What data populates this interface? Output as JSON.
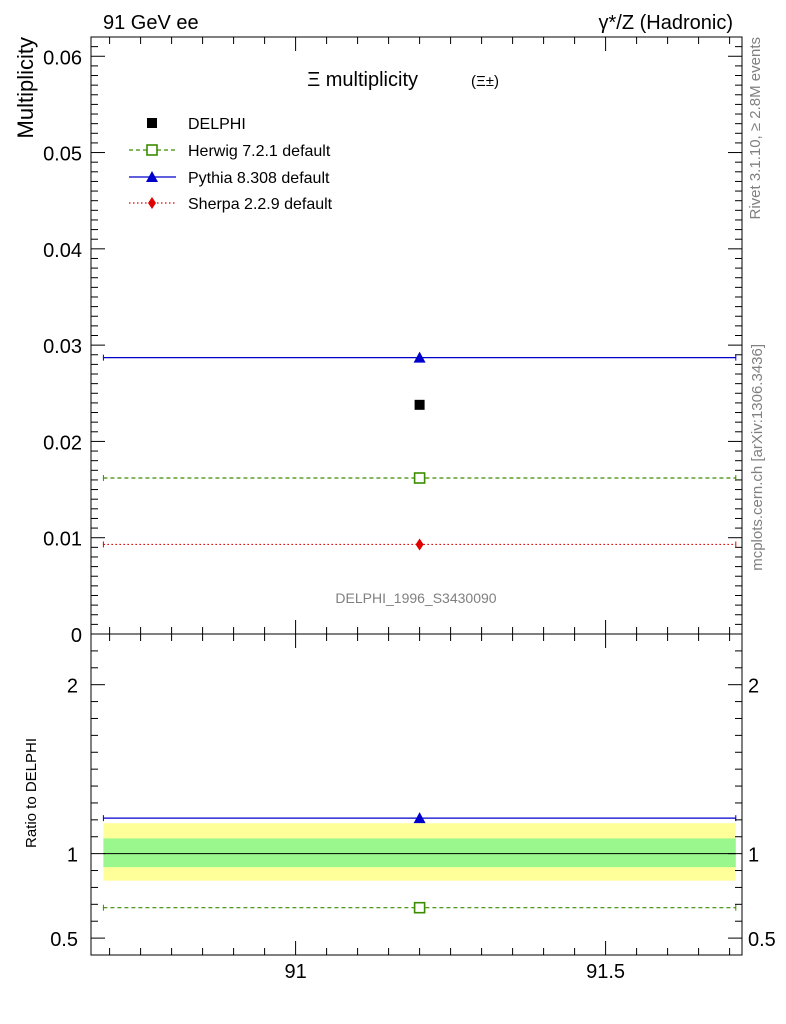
{
  "header": {
    "left": "91 GeV ee",
    "right": "γ*/Z (Hadronic)"
  },
  "side_labels": {
    "rivet": "Rivet 3.1.10, ≥ 2.8M events",
    "mcplots": "mcplots.cern.ch [arXiv:1306.3436]"
  },
  "watermark": "DELPHI_1996_S3430090",
  "chart_data": [
    {
      "type": "scatter",
      "title": "Ξ multiplicity",
      "title_suffix": "(Ξ±)",
      "ylabel": "Multiplicity",
      "xlim": [
        90.67,
        91.72
      ],
      "ylim": [
        0,
        0.062
      ],
      "y_ticks": [
        "0",
        "0.01",
        "0.02",
        "0.03",
        "0.04",
        "0.05",
        "0.06"
      ],
      "legend_position": "top-left",
      "series": [
        {
          "name": "DELPHI",
          "x": [
            91.2
          ],
          "y": [
            0.0238
          ],
          "color": "#000000",
          "marker": "filled-square",
          "line": "none"
        },
        {
          "name": "Herwig 7.2.1 default",
          "x": [
            91.2
          ],
          "y": [
            0.0162
          ],
          "xrange": [
            90.69,
            91.71
          ],
          "color": "#3a8c00",
          "marker": "open-square",
          "line": "dashed"
        },
        {
          "name": "Pythia 8.308 default",
          "x": [
            91.2
          ],
          "y": [
            0.0287
          ],
          "xrange": [
            90.69,
            91.71
          ],
          "color": "#0000cc",
          "marker": "filled-triangle",
          "line": "solid"
        },
        {
          "name": "Sherpa 2.2.9 default",
          "x": [
            91.2
          ],
          "y": [
            0.0093
          ],
          "xrange": [
            90.69,
            91.71
          ],
          "color": "#e00000",
          "marker": "filled-diamond",
          "line": "dotted"
        }
      ]
    },
    {
      "type": "scatter",
      "ylabel": "Ratio to DELPHI",
      "xlim": [
        90.67,
        91.72
      ],
      "ylim": [
        0.4,
        2.3
      ],
      "y_ticks": [
        "0.5",
        "1",
        "2"
      ],
      "x_ticks": [
        "91",
        "91.5"
      ],
      "bands": [
        {
          "low": 0.84,
          "high": 1.18,
          "color": "#ffff99"
        },
        {
          "low": 0.92,
          "high": 1.09,
          "color": "#99f78d"
        }
      ],
      "reference_line": 1.0,
      "series": [
        {
          "name": "Herwig 7.2.1 default",
          "x": [
            91.2
          ],
          "y": [
            0.68
          ],
          "color": "#3a8c00",
          "marker": "open-square",
          "line": "dashed"
        },
        {
          "name": "Pythia 8.308 default",
          "x": [
            91.2
          ],
          "y": [
            1.21
          ],
          "color": "#0000cc",
          "marker": "filled-triangle",
          "line": "solid"
        }
      ]
    }
  ]
}
